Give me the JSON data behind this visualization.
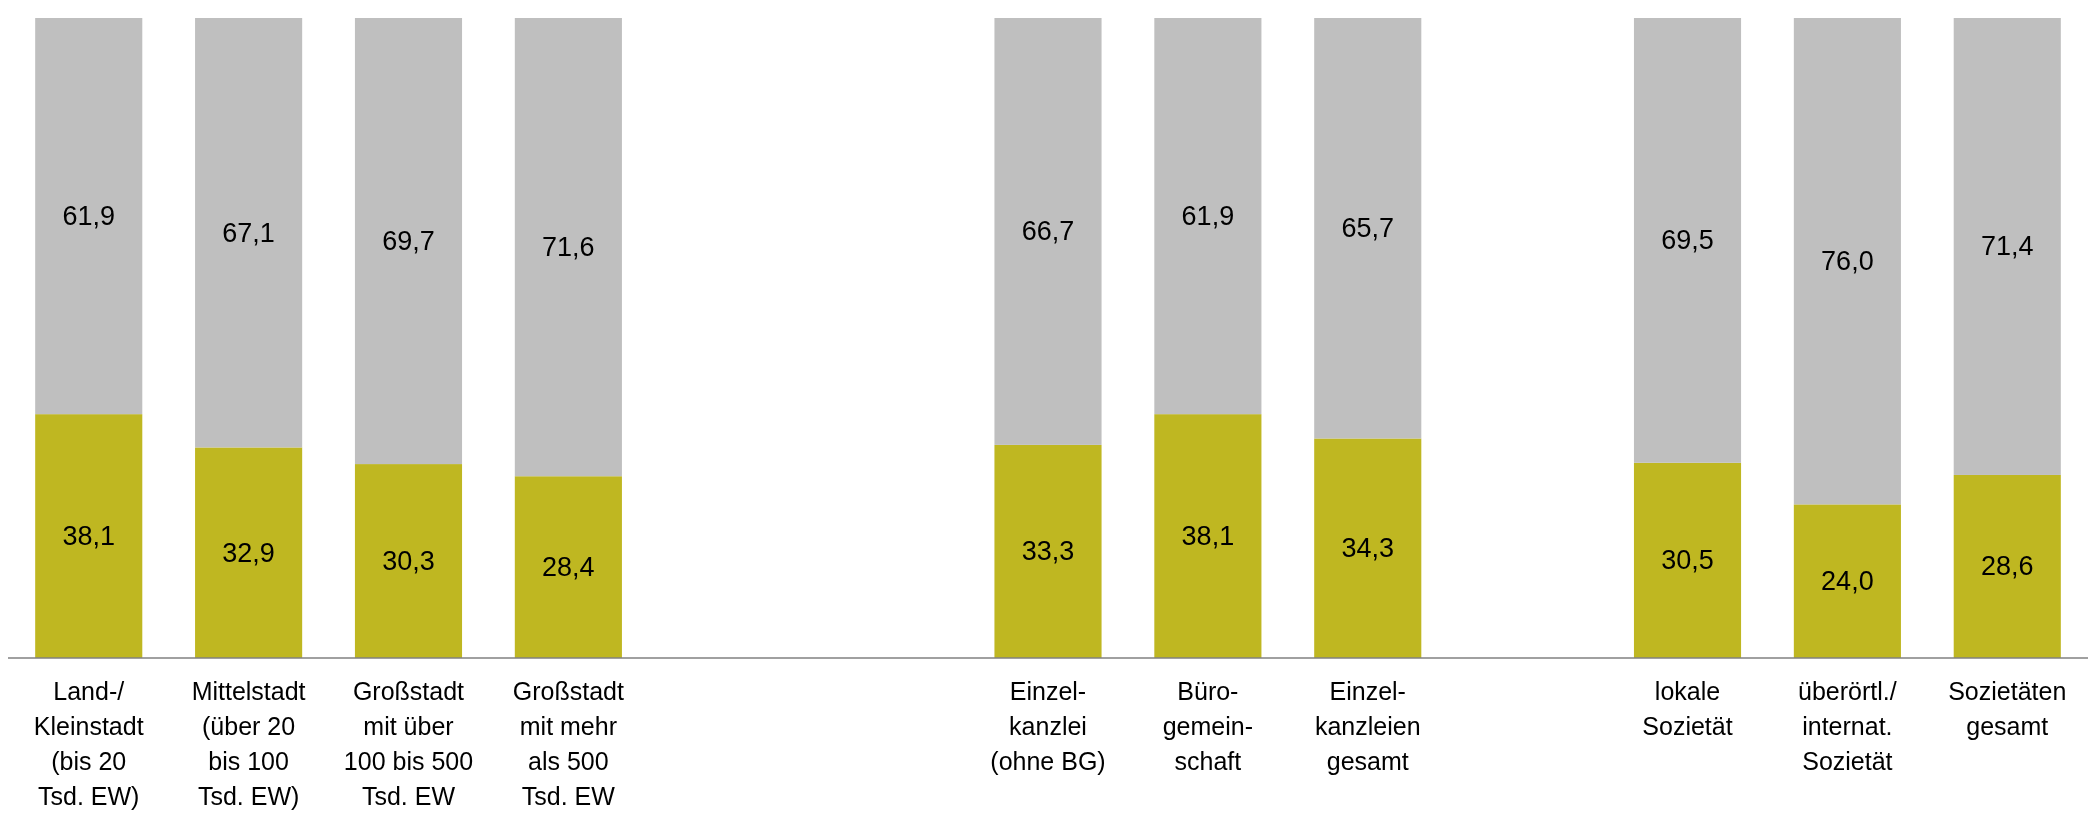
{
  "chart_data": {
    "type": "bar",
    "stacked": true,
    "tick_labels": "x",
    "categories": [
      "Land-/\nKleinstadt\n(bis 20\nTsd. EW)",
      "Mittelstadt\n(über 20\nbis 100\nTsd. EW)",
      "Großstadt\nmit über\n100 bis 500\nTsd. EW",
      "Großstadt\nmit mehr\nals 500\nTsd. EW",
      null,
      null,
      "Einzel-\nkanzlei\n(ohne BG)",
      "Büro-\ngemein-\nschaft",
      "Einzel-\nkanzleien\ngesamt",
      null,
      "lokale\nSozietät",
      "überörtl./\ninternat.\nSozietät",
      "Sozietäten\ngesamt"
    ],
    "series": [
      {
        "color": "#bfb721",
        "values": [
          38.1,
          32.9,
          30.3,
          28.4,
          null,
          null,
          33.3,
          38.1,
          34.3,
          null,
          30.5,
          24.0,
          28.6
        ],
        "value_labels": [
          "38,1",
          "32,9",
          "30,3",
          "28,4",
          null,
          null,
          "33,3",
          "38,1",
          "34,3",
          null,
          "30,5",
          "24,0",
          "28,6"
        ]
      },
      {
        "color": "#bfbfbf",
        "values": [
          61.9,
          67.1,
          69.7,
          71.6,
          null,
          null,
          66.7,
          61.9,
          65.7,
          null,
          69.5,
          76.0,
          71.4
        ],
        "value_labels": [
          "61,9",
          "67,1",
          "69,7",
          "71,6",
          null,
          null,
          "66,7",
          "61,9",
          "65,7",
          null,
          "69,5",
          "76,0",
          "71,4"
        ]
      }
    ]
  }
}
